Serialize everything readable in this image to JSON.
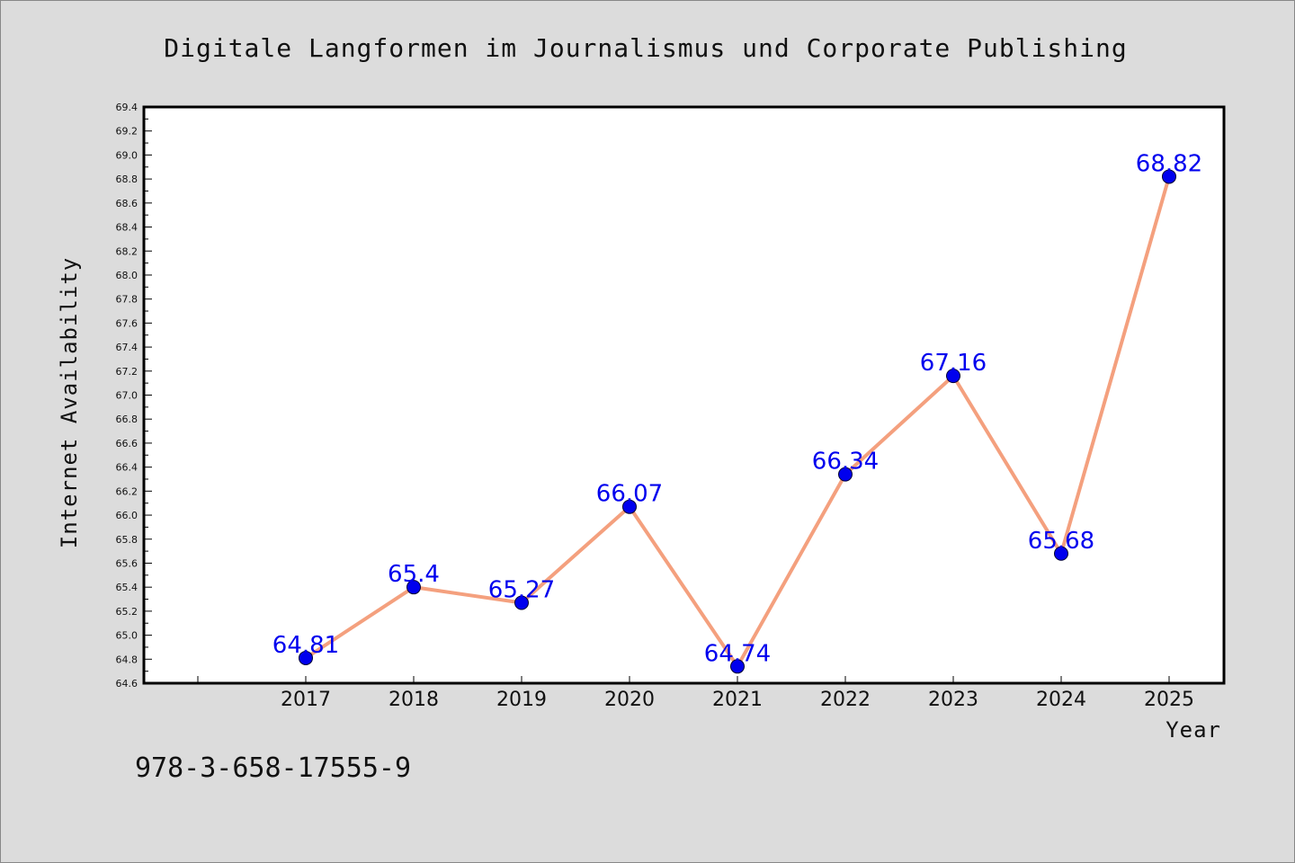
{
  "chart_data": {
    "type": "line",
    "title": "Digitale Langformen im Journalismus und Corporate Publishing",
    "xlabel": "Year",
    "ylabel": "Internet Availability",
    "x": [
      "2017",
      "2018",
      "2019",
      "2020",
      "2021",
      "2022",
      "2023",
      "2024",
      "2025"
    ],
    "series": [
      {
        "values": [
          64.81,
          65.4,
          65.27,
          66.07,
          64.74,
          66.34,
          67.16,
          65.68,
          68.82
        ],
        "labels": [
          "64.81",
          "65.4",
          "65.27",
          "66.07",
          "64.74",
          "66.34",
          "67.16",
          "65.68",
          "68.82"
        ],
        "line_color": "#f4a07e",
        "marker_color": "#0000ee"
      }
    ],
    "ylim": [
      64.6,
      69.4
    ],
    "ytick_step": 0.2,
    "grid": false,
    "background": "#dcdcdc",
    "plot_background": "#ffffff"
  },
  "footer": {
    "isbn": "978-3-658-17555-9"
  }
}
